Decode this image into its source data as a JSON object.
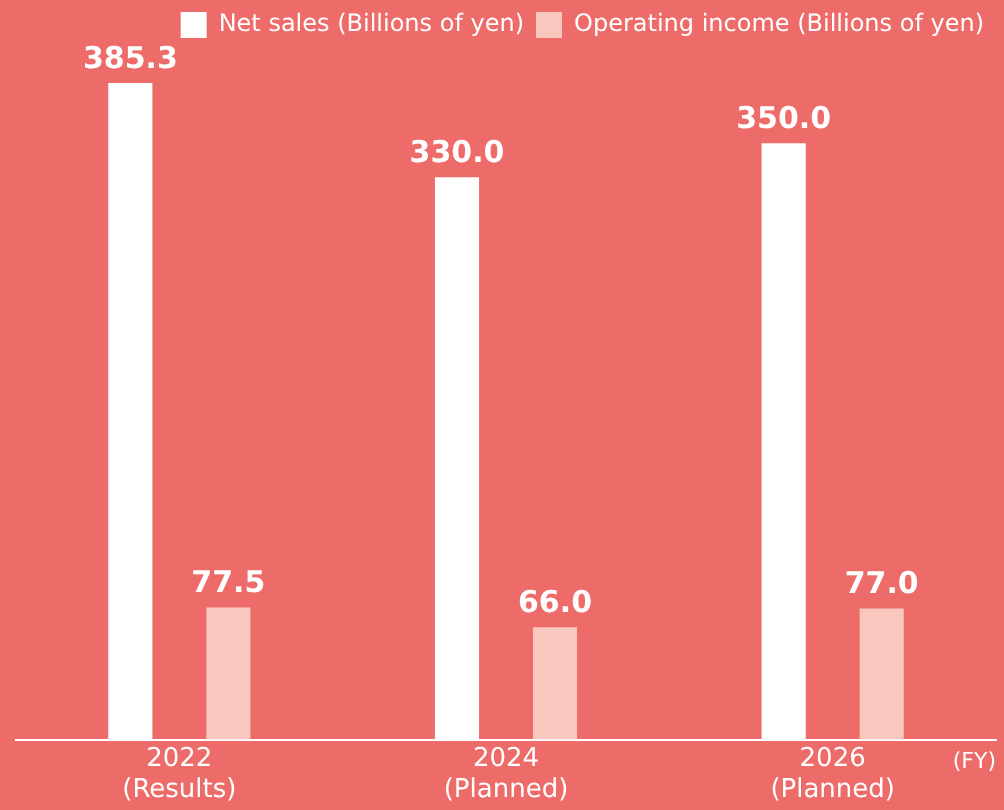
{
  "chart_data": {
    "type": "bar",
    "categories": [
      "2022\n(Results)",
      "2024\n(Planned)",
      "2026\n(Planned)"
    ],
    "xlabel": "(FY)",
    "series": [
      {
        "name": "Net sales (Billions of yen)",
        "color": "#ffffff",
        "values": [
          385.3,
          330.0,
          350.0
        ],
        "value_labels": [
          "385.3",
          "330.0",
          "350.0"
        ]
      },
      {
        "name": "Operating income (Billions of yen)",
        "color": "#f8c8bf",
        "values": [
          77.5,
          66.0,
          77.0
        ],
        "value_labels": [
          "77.5",
          "66.0",
          "77.0"
        ]
      }
    ],
    "legend": "top right",
    "grid": false,
    "tick_labels": "x"
  }
}
